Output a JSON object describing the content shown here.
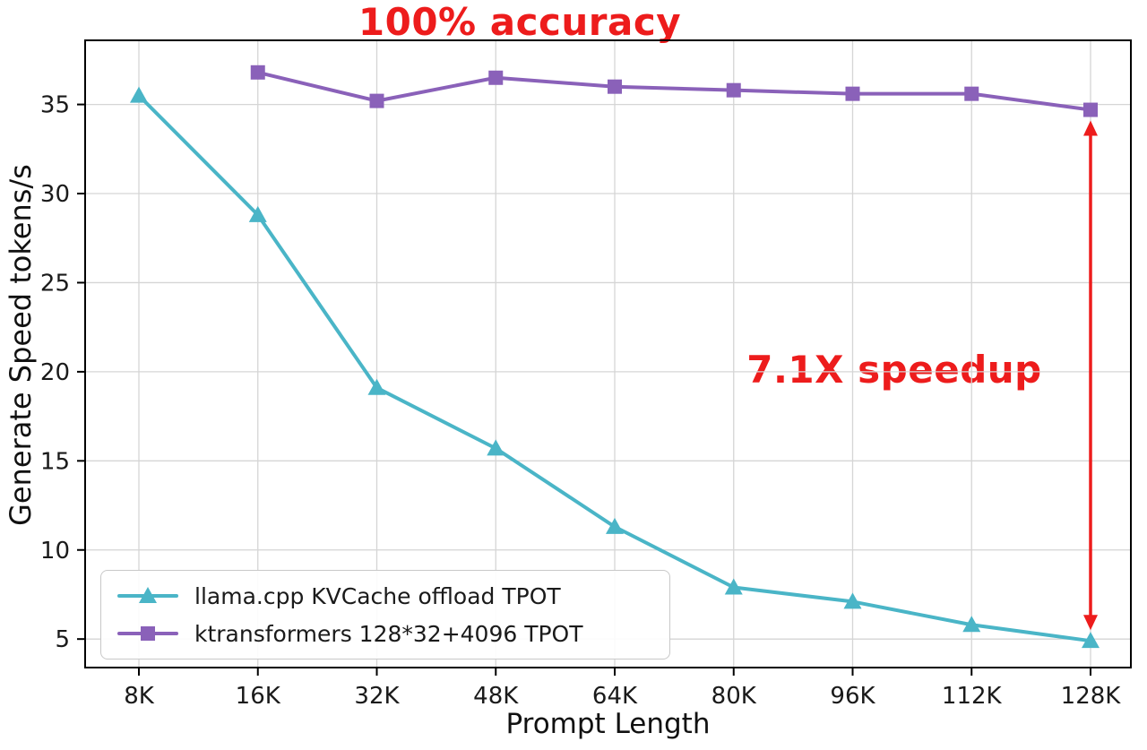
{
  "chart_data": {
    "type": "line",
    "title": "",
    "xlabel": "Prompt Length",
    "ylabel": "Generate Speed tokens/s",
    "categories": [
      "8K",
      "16K",
      "32K",
      "48K",
      "64K",
      "80K",
      "96K",
      "112K",
      "128K"
    ],
    "series": [
      {
        "name": "llama.cpp KVCache offload TPOT",
        "marker": "triangle",
        "color": "#4ab5c7",
        "values": [
          35.5,
          28.8,
          19.1,
          15.7,
          11.3,
          7.9,
          7.1,
          5.8,
          4.9
        ]
      },
      {
        "name": "ktransformers 128*32+4096 TPOT",
        "marker": "square",
        "color": "#8a61b9",
        "values": [
          null,
          36.8,
          35.2,
          36.5,
          36.0,
          35.8,
          35.6,
          35.6,
          34.7
        ]
      }
    ],
    "yticks": [
      5,
      10,
      15,
      20,
      25,
      30,
      35
    ],
    "ylim": [
      3.4,
      38.6
    ],
    "grid": true,
    "grid_color": "#d5d5d5",
    "legend_position": "lower left",
    "annotations": [
      {
        "id": "accuracy",
        "text": "100% accuracy",
        "color": "#ed1c1c"
      },
      {
        "id": "speedup",
        "text": "7.1X speedup",
        "color": "#ed1c1c"
      }
    ],
    "arrow": {
      "category": "128K",
      "from": 34.1,
      "to": 5.5,
      "color": "#ed1c1c",
      "style": "double-headed-vertical"
    }
  }
}
